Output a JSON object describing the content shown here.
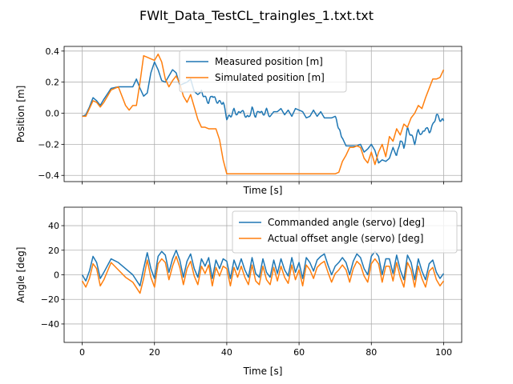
{
  "figure": {
    "title": "FWlt_Data_TestCL_traingles_1.txt.txt"
  },
  "colors": {
    "blue": "#1f77b4",
    "orange": "#ff7f0e",
    "grid": "#b0b0b0"
  },
  "chart_data": [
    {
      "type": "line",
      "xlabel": "Time [s]",
      "ylabel": "Position [m]",
      "xlim": [
        -5,
        105
      ],
      "ylim": [
        -0.44,
        0.43
      ],
      "xticks": [
        0,
        20,
        40,
        60,
        80,
        100
      ],
      "yticks": [
        -0.4,
        -0.2,
        0.0,
        0.2,
        0.4
      ],
      "ytick_labels": [
        "−0.4",
        "−0.2",
        "0.0",
        "0.2",
        "0.4"
      ],
      "show_xtick_labels": false,
      "grid": true,
      "legend": "top-center",
      "series": [
        {
          "name": "Measured position [m]",
          "color": "#1f77b4",
          "oscillate": [
            [
              33,
              52,
              0.012,
              1.3
            ],
            [
              70,
              72,
              0.008,
              1.0
            ],
            [
              87,
              100,
              0.012,
              1.4
            ]
          ],
          "x": [
            0,
            1,
            2,
            3,
            4,
            5,
            6,
            8,
            10,
            12,
            14,
            15,
            16,
            17,
            18,
            19,
            20,
            21,
            22,
            23,
            24,
            25,
            26,
            27,
            28,
            29,
            30,
            31,
            32,
            33,
            34,
            35,
            36,
            37,
            38,
            39,
            40,
            41,
            42,
            43,
            44,
            45,
            46,
            47,
            48,
            49,
            50,
            51,
            52,
            53,
            54,
            55,
            56,
            57,
            58,
            59,
            60,
            61,
            62,
            63,
            64,
            65,
            66,
            67,
            68,
            69,
            70,
            71,
            72,
            73,
            74,
            75,
            76,
            77,
            78,
            79,
            80,
            81,
            82,
            83,
            84,
            85,
            86,
            87,
            88,
            89,
            90,
            91,
            92,
            93,
            94,
            95,
            96,
            97,
            98,
            99,
            100
          ],
          "y": [
            -0.02,
            -0.01,
            0.04,
            0.1,
            0.08,
            0.05,
            0.09,
            0.16,
            0.17,
            0.17,
            0.17,
            0.22,
            0.16,
            0.11,
            0.13,
            0.26,
            0.33,
            0.28,
            0.21,
            0.2,
            0.24,
            0.28,
            0.26,
            0.18,
            0.19,
            0.2,
            0.22,
            0.14,
            0.12,
            0.14,
            0.1,
            0.07,
            0.12,
            0.08,
            0.07,
            0.07,
            -0.03,
            -0.02,
            0.02,
            -0.01,
            0.02,
            -0.01,
            -0.03,
            0.03,
            -0.02,
            0.02,
            -0.01,
            0.02,
            -0.02,
            0.01,
            0.01,
            0.03,
            -0.01,
            0.02,
            -0.02,
            0.03,
            0.02,
            0.01,
            -0.03,
            -0.02,
            0.02,
            -0.02,
            0.01,
            -0.03,
            -0.03,
            -0.03,
            -0.02,
            -0.1,
            -0.16,
            -0.21,
            -0.21,
            -0.21,
            -0.21,
            -0.2,
            -0.25,
            -0.23,
            -0.2,
            -0.24,
            -0.32,
            -0.3,
            -0.31,
            -0.29,
            -0.22,
            -0.28,
            -0.17,
            -0.22,
            -0.1,
            -0.14,
            -0.19,
            -0.11,
            -0.14,
            -0.09,
            -0.12,
            -0.08,
            -0.01,
            -0.04,
            -0.05
          ]
        },
        {
          "name": "Simulated position [m]",
          "color": "#ff7f0e",
          "x": [
            0,
            1,
            2,
            3,
            4,
            5,
            6,
            8,
            10,
            12,
            13,
            14,
            15,
            16,
            17,
            18,
            19,
            20,
            21,
            22,
            23,
            24,
            25,
            26,
            27,
            28,
            29,
            30,
            31,
            32,
            33,
            34,
            35,
            36,
            37,
            38,
            39,
            40,
            42,
            50,
            60,
            70,
            71,
            72,
            73,
            74,
            75,
            76,
            77,
            78,
            79,
            80,
            81,
            82,
            83,
            84,
            85,
            86,
            87,
            88,
            89,
            90,
            91,
            92,
            93,
            94,
            95,
            96,
            97,
            98,
            99,
            100
          ],
          "y": [
            -0.02,
            -0.02,
            0.03,
            0.08,
            0.07,
            0.04,
            0.07,
            0.15,
            0.17,
            0.05,
            0.02,
            0.05,
            0.05,
            0.2,
            0.37,
            0.36,
            0.35,
            0.34,
            0.38,
            0.33,
            0.22,
            0.17,
            0.21,
            0.24,
            0.19,
            0.11,
            0.07,
            0.12,
            0.04,
            -0.04,
            -0.09,
            -0.09,
            -0.1,
            -0.1,
            -0.1,
            -0.17,
            -0.3,
            -0.39,
            -0.39,
            -0.39,
            -0.39,
            -0.39,
            -0.38,
            -0.31,
            -0.27,
            -0.22,
            -0.22,
            -0.21,
            -0.22,
            -0.29,
            -0.32,
            -0.25,
            -0.33,
            -0.25,
            -0.2,
            -0.28,
            -0.15,
            -0.18,
            -0.1,
            -0.14,
            -0.07,
            -0.09,
            -0.03,
            0.0,
            0.05,
            0.03,
            0.1,
            0.16,
            0.22,
            0.22,
            0.23,
            0.28
          ]
        }
      ]
    },
    {
      "type": "line",
      "xlabel": "Time [s]",
      "ylabel": "Angle [deg]",
      "xlim": [
        -5,
        105
      ],
      "ylim": [
        -55,
        55
      ],
      "xticks": [
        0,
        20,
        40,
        60,
        80,
        100
      ],
      "xtick_labels": [
        "0",
        "20",
        "40",
        "60",
        "80",
        "100"
      ],
      "yticks": [
        -40,
        -20,
        0,
        20,
        40
      ],
      "ytick_labels": [
        "−40",
        "−20",
        "0",
        "20",
        "40"
      ],
      "show_xtick_labels": true,
      "grid": true,
      "legend": "top-right",
      "series": [
        {
          "name": "Commanded angle (servo) [deg]",
          "color": "#1f77b4",
          "x": [
            0,
            1,
            2,
            3,
            4,
            5,
            6,
            8,
            10,
            12,
            14,
            16,
            17,
            18,
            19,
            20,
            21,
            22,
            23,
            24,
            25,
            26,
            27,
            28,
            29,
            30,
            31,
            32,
            33,
            34,
            35,
            36,
            37,
            38,
            39,
            40,
            41,
            42,
            43,
            44,
            45,
            46,
            47,
            48,
            49,
            50,
            51,
            52,
            53,
            54,
            55,
            56,
            57,
            58,
            59,
            60,
            61,
            62,
            63,
            64,
            65,
            66,
            67,
            68,
            69,
            70,
            71,
            72,
            73,
            74,
            75,
            76,
            77,
            78,
            79,
            80,
            81,
            82,
            83,
            84,
            85,
            86,
            87,
            88,
            89,
            90,
            91,
            92,
            93,
            94,
            95,
            96,
            97,
            98,
            99,
            100
          ],
          "y": [
            0,
            -5,
            3,
            15,
            10,
            -3,
            2,
            13,
            10,
            5,
            0,
            -9,
            5,
            18,
            5,
            -3,
            15,
            19,
            16,
            2,
            13,
            20,
            12,
            -2,
            11,
            17,
            5,
            -2,
            13,
            7,
            14,
            -3,
            12,
            5,
            13,
            11,
            -3,
            12,
            4,
            13,
            4,
            -2,
            14,
            1,
            -2,
            13,
            2,
            -2,
            12,
            1,
            13,
            4,
            -1,
            14,
            2,
            10,
            -3,
            14,
            10,
            3,
            12,
            15,
            17,
            8,
            0,
            7,
            10,
            14,
            10,
            0,
            11,
            17,
            14,
            5,
            0,
            15,
            19,
            15,
            0,
            13,
            13,
            1,
            16,
            4,
            -4,
            16,
            10,
            -4,
            13,
            3,
            -4,
            9,
            12,
            2,
            -3,
            1
          ]
        },
        {
          "name": "Actual offset angle (servo) [deg]",
          "color": "#ff7f0e",
          "x": [
            0,
            1,
            2,
            3,
            4,
            5,
            6,
            8,
            10,
            12,
            14,
            16,
            17,
            18,
            19,
            20,
            21,
            22,
            23,
            24,
            25,
            26,
            27,
            28,
            29,
            30,
            31,
            32,
            33,
            34,
            35,
            36,
            37,
            38,
            39,
            40,
            41,
            42,
            43,
            44,
            45,
            46,
            47,
            48,
            49,
            50,
            51,
            52,
            53,
            54,
            55,
            56,
            57,
            58,
            59,
            60,
            61,
            62,
            63,
            64,
            65,
            66,
            67,
            68,
            69,
            70,
            71,
            72,
            73,
            74,
            75,
            76,
            77,
            78,
            79,
            80,
            81,
            82,
            83,
            84,
            85,
            86,
            87,
            88,
            89,
            90,
            91,
            92,
            93,
            94,
            95,
            96,
            97,
            98,
            99,
            100
          ],
          "y": [
            -5,
            -10,
            -3,
            9,
            5,
            -9,
            -4,
            10,
            4,
            -2,
            -6,
            -15,
            -3,
            12,
            -2,
            -10,
            9,
            13,
            10,
            -4,
            7,
            15,
            6,
            -8,
            5,
            11,
            -1,
            -8,
            7,
            1,
            8,
            -9,
            6,
            -1,
            7,
            5,
            -9,
            6,
            -2,
            7,
            -2,
            -8,
            8,
            -5,
            -8,
            7,
            -4,
            -8,
            6,
            -5,
            7,
            -2,
            -7,
            8,
            -4,
            4,
            -9,
            8,
            4,
            -3,
            6,
            9,
            11,
            2,
            -6,
            1,
            4,
            8,
            4,
            -6,
            5,
            11,
            8,
            -1,
            -6,
            9,
            13,
            9,
            -6,
            7,
            7,
            -5,
            10,
            -2,
            -10,
            10,
            4,
            -10,
            7,
            -3,
            -10,
            3,
            6,
            -4,
            -9,
            -5
          ]
        }
      ]
    }
  ]
}
